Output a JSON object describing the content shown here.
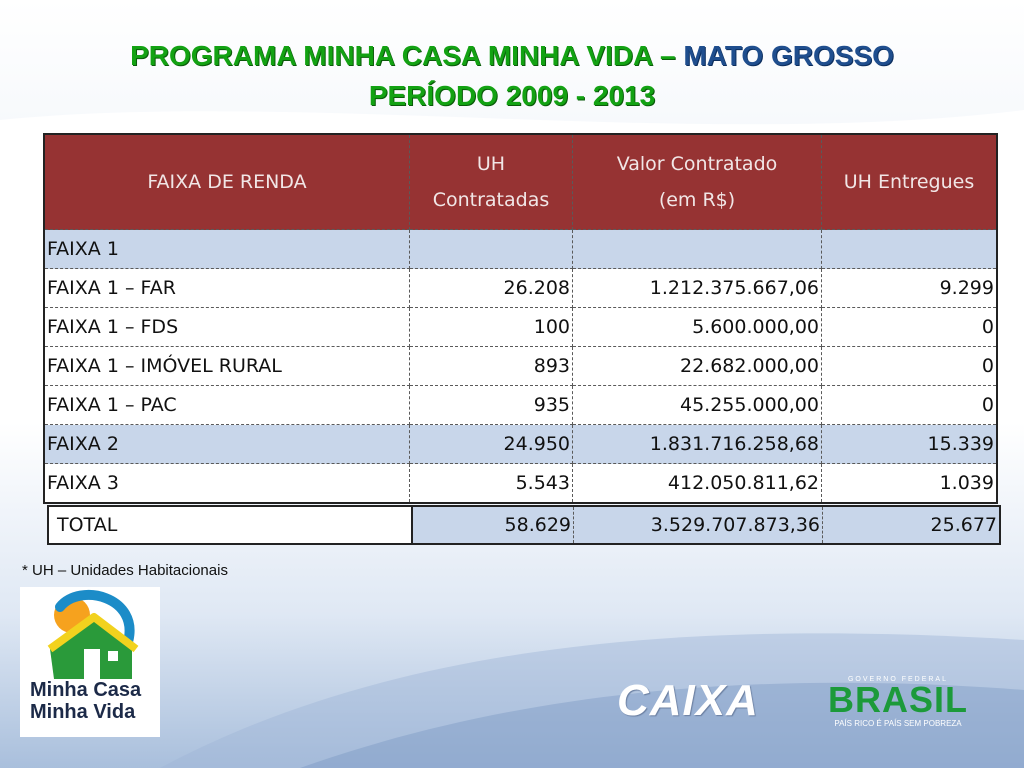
{
  "title": {
    "line1_green": "PROGRAMA MINHA CASA MINHA VIDA – ",
    "line1_blue": "MATO GROSSO",
    "line2": "PERÍODO 2009 - 2013"
  },
  "table": {
    "headers": [
      "FAIXA DE RENDA",
      "UH\nContratadas",
      "Valor Contratado\n(em R$)",
      "UH Entregues"
    ],
    "rows": [
      {
        "label": "FAIXA 1",
        "uh": "",
        "valor": "",
        "entregues": ""
      },
      {
        "label": "FAIXA 1 – FAR",
        "uh": "26.208",
        "valor": "1.212.375.667,06",
        "entregues": "9.299"
      },
      {
        "label": "FAIXA 1 – FDS",
        "uh": "100",
        "valor": "5.600.000,00",
        "entregues": "0"
      },
      {
        "label": "FAIXA 1 – IMÓVEL RURAL",
        "uh": "893",
        "valor": "22.682.000,00",
        "entregues": "0"
      },
      {
        "label": "FAIXA 1 – PAC",
        "uh": "935",
        "valor": "45.255.000,00",
        "entregues": "0"
      },
      {
        "label": "FAIXA 2",
        "uh": "24.950",
        "valor": "1.831.716.258,68",
        "entregues": "15.339"
      },
      {
        "label": "FAIXA 3",
        "uh": "5.543",
        "valor": "412.050.811,62",
        "entregues": "1.039"
      }
    ],
    "total": {
      "label": "TOTAL",
      "uh": "58.629",
      "valor": "3.529.707.873,36",
      "entregues": "25.677"
    }
  },
  "footnote": "* UH – Unidades Habitacionais",
  "logos": {
    "mcmv_line1": "Minha Casa",
    "mcmv_line2": "Minha Vida",
    "caixa": "CAIXA",
    "brasil_top": "GOVERNO FEDERAL",
    "brasil": "BRASIL",
    "brasil_tagline": "PAÍS RICO É PAÍS SEM POBREZA"
  },
  "colors": {
    "header_bg": "#963333",
    "row_blue": "#c8d6ea",
    "title_green": "#13a213",
    "title_blue": "#1f4e8e"
  }
}
